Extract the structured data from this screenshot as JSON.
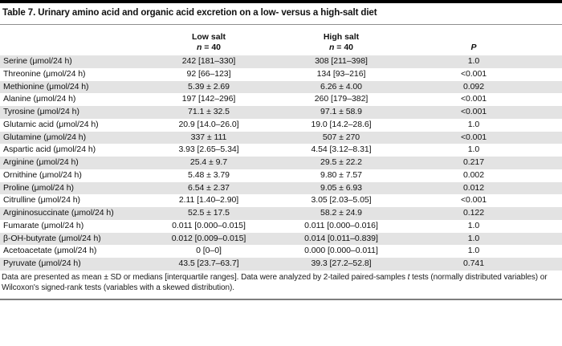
{
  "table": {
    "title": "Table 7. Urinary amino acid and organic acid excretion on a low- versus a high-salt diet",
    "header": {
      "analyte": "",
      "low_salt": {
        "label": "Low salt",
        "n_italic": "n",
        "n_rest": " = 40"
      },
      "high_salt": {
        "label": "High salt",
        "n_italic": "n",
        "n_rest": " = 40"
      },
      "p": "P"
    },
    "rows": [
      {
        "analyte": "Serine (μmol/24 h)",
        "low_salt": "242 [181–330]",
        "high_salt": "308 [211–398]",
        "p": "1.0"
      },
      {
        "analyte": "Threonine (μmol/24 h)",
        "low_salt": "92 [66–123]",
        "high_salt": "134 [93–216]",
        "p": "<0.001"
      },
      {
        "analyte": "Methionine (μmol/24 h)",
        "low_salt": "5.39 ± 2.69",
        "high_salt": "6.26 ± 4.00",
        "p": "0.092"
      },
      {
        "analyte": "Alanine (μmol/24 h)",
        "low_salt": "197 [142–296]",
        "high_salt": "260 [179–382]",
        "p": "<0.001"
      },
      {
        "analyte": "Tyrosine (μmol/24 h)",
        "low_salt": "71.1 ± 32.5",
        "high_salt": "97.1 ± 58.9",
        "p": "<0.001"
      },
      {
        "analyte": "Glutamic acid (μmol/24 h)",
        "low_salt": "20.9 [14.0–26.0]",
        "high_salt": "19.0 [14.2–28.6]",
        "p": "1.0"
      },
      {
        "analyte": "Glutamine (μmol/24 h)",
        "low_salt": "337 ± 111",
        "high_salt": "507 ± 270",
        "p": "<0.001"
      },
      {
        "analyte": "Aspartic acid (μmol/24 h)",
        "low_salt": "3.93 [2.65–5.34]",
        "high_salt": "4.54 [3.12–8.31]",
        "p": "1.0"
      },
      {
        "analyte": "Arginine (μmol/24 h)",
        "low_salt": "25.4 ± 9.7",
        "high_salt": "29.5 ± 22.2",
        "p": "0.217"
      },
      {
        "analyte": "Ornithine (μmol/24 h)",
        "low_salt": "5.48 ± 3.79",
        "high_salt": "9.80 ± 7.57",
        "p": "0.002"
      },
      {
        "analyte": "Proline (μmol/24 h)",
        "low_salt": "6.54 ± 2.37",
        "high_salt": "9.05 ± 6.93",
        "p": "0.012"
      },
      {
        "analyte": "Citrulline (μmol/24 h)",
        "low_salt": "2.11 [1.40–2.90]",
        "high_salt": "3.05 [2.03–5.05]",
        "p": "<0.001"
      },
      {
        "analyte": "Argininosuccinate (μmol/24 h)",
        "low_salt": "52.5 ± 17.5",
        "high_salt": "58.2 ± 24.9",
        "p": "0.122"
      },
      {
        "analyte": "Fumarate (μmol/24 h)",
        "low_salt": "0.011 [0.000–0.015]",
        "high_salt": "0.011 [0.000–0.016]",
        "p": "1.0"
      },
      {
        "analyte": "β-OH-butyrate (μmol/24 h)",
        "low_salt": "0.012 [0.009–0.015]",
        "high_salt": "0.014 [0.011–0.839]",
        "p": "1.0"
      },
      {
        "analyte": "Acetoacetate (μmol/24 h)",
        "low_salt": "0 [0–0]",
        "high_salt": "0.000 [0.000–0.011]",
        "p": "1.0"
      },
      {
        "analyte": "Pyruvate (μmol/24 h)",
        "low_salt": "43.5 [23.7–63.7]",
        "high_salt": "39.3 [27.2–52.8]",
        "p": "0.741"
      }
    ]
  },
  "footnote": {
    "part1": "Data are presented as mean ± SD or medians [interquartile ranges]. Data were analyzed by 2-tailed paired-samples ",
    "italic": "t",
    "part2": " tests (normally distributed variables) or Wilcoxon's signed-rank tests (variables with a skewed distribution)."
  },
  "colors": {
    "row_shade": "#e3e3e3",
    "top_bar": "#000000",
    "title_rule": "#8f8f8f",
    "bottom_rule": "#7e7e7e"
  }
}
